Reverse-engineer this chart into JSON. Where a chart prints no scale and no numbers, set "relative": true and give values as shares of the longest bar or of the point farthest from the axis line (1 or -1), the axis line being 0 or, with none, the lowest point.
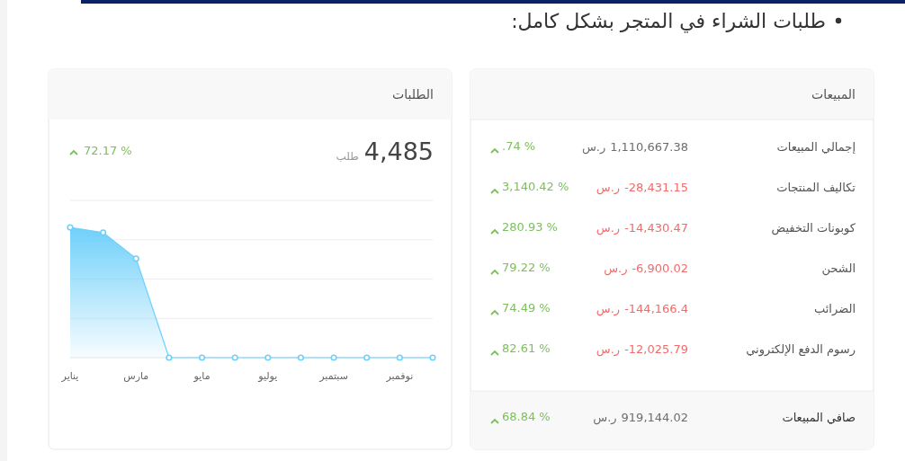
{
  "chart_data": [
    {
      "type": "other",
      "title": "المبيعات",
      "annotations": [
        "طلبات الشراء في المتجر بشكل كامل:",
        "إجمالي المبيعات",
        "1,110,667.38 ر.س",
        ".74 %",
        "تكاليف المنتجات",
        "-28,431.15 ر.س",
        "3,140.42 %",
        "كوبونات التخفيض",
        "-14,430.47 ر.س",
        "280.93 %",
        "الشحن",
        "-6,900.02 ر.س",
        "79.22 %",
        "الضرائب",
        "-144,166.4 ر.س",
        "74.49 %",
        "رسوم الدفع الإلكتروني",
        "-12,025.79 ر.س",
        "82.61 %",
        "صافي المبيعات",
        "919,144.02 ر.س",
        "68.84 %"
      ],
      "colors": [
        "#6d6d6d",
        "#f26b6b",
        "#f26b6b",
        "#f26b6b",
        "#f26b6b",
        "#f26b6b",
        "#6d6d6d"
      ]
    },
    {
      "type": "area",
      "title": "الطلبات",
      "relative": true,
      "annotations": [
        "4,485",
        "طلب",
        "72.17 %"
      ],
      "categories": [
        "يناير",
        null,
        "مارس",
        null,
        "مايو",
        null,
        "يوليو",
        null,
        "سبتمبر",
        null,
        "نوفمبر",
        null
      ],
      "series": [
        {
          "color": "#6fd0fa",
          "values": [
            1,
            0.96,
            0.76,
            0,
            0,
            0,
            0,
            0,
            0,
            0,
            0,
            0
          ]
        }
      ],
      "grid": "y",
      "marker": "circle"
    }
  ]
}
